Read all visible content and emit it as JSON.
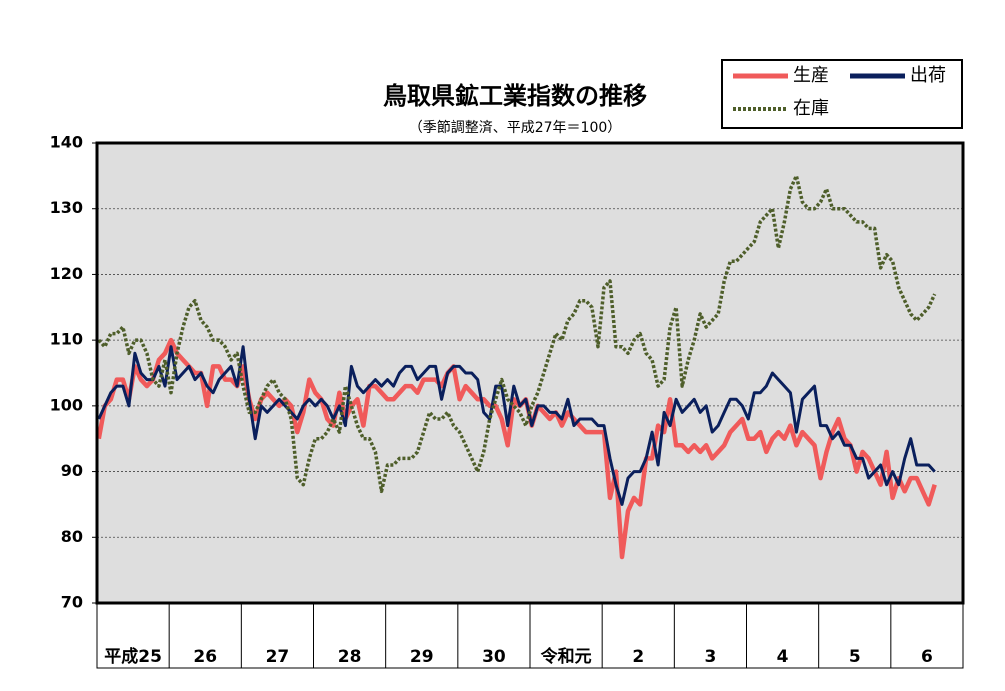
{
  "chart_data": {
    "type": "line",
    "title": "鳥取県鉱工業指数の推移",
    "subtitle": "（季節調整済、平成27年＝100）",
    "categories": [
      "平成25",
      null,
      null,
      null,
      null,
      null,
      null,
      null,
      null,
      null,
      null,
      null,
      "26",
      null,
      null,
      null,
      null,
      null,
      null,
      null,
      null,
      null,
      null,
      null,
      "27",
      null,
      null,
      null,
      null,
      null,
      null,
      null,
      null,
      null,
      null,
      null,
      "28",
      null,
      null,
      null,
      null,
      null,
      null,
      null,
      null,
      null,
      null,
      null,
      "29",
      null,
      null,
      null,
      null,
      null,
      null,
      null,
      null,
      null,
      null,
      null,
      "30",
      null,
      null,
      null,
      null,
      null,
      null,
      null,
      null,
      null,
      null,
      null,
      "令和元",
      null,
      null,
      null,
      null,
      null,
      null,
      null,
      null,
      null,
      null,
      null,
      "2",
      null,
      null,
      null,
      null,
      null,
      null,
      null,
      null,
      null,
      null,
      null,
      "3",
      null,
      null,
      null,
      null,
      null,
      null,
      null,
      null,
      null,
      null,
      null,
      "4",
      null,
      null,
      null,
      null,
      null,
      null,
      null,
      null,
      null,
      null,
      null,
      "5",
      null,
      null,
      null,
      null,
      null,
      null,
      null,
      null,
      null,
      null,
      null,
      "6",
      null,
      null,
      null,
      null,
      null,
      null,
      null,
      null,
      null,
      null,
      null
    ],
    "series": [
      {
        "name": "生産",
        "color": "#f05a5a",
        "dash": "solid",
        "values": [
          95,
          100,
          101,
          104,
          104,
          101,
          106,
          104,
          103,
          104,
          107,
          108,
          110,
          108,
          107,
          106,
          105,
          105,
          100,
          106,
          106,
          104,
          104,
          103,
          106,
          101,
          98,
          101,
          102,
          101,
          100,
          101,
          100,
          96,
          99,
          104,
          102,
          101,
          98,
          97,
          102,
          98,
          100,
          101,
          97,
          103,
          103,
          102,
          101,
          101,
          102,
          103,
          103,
          102,
          104,
          104,
          104,
          103,
          105,
          106,
          101,
          103,
          102,
          101,
          101,
          100,
          100,
          98,
          94,
          101,
          100,
          101,
          97,
          100,
          99,
          98,
          99,
          97,
          99,
          98,
          97,
          96,
          96,
          96,
          96,
          86,
          90,
          77,
          84,
          86,
          85,
          92,
          92,
          97,
          96,
          101,
          94,
          94,
          93,
          94,
          93,
          94,
          92,
          93,
          94,
          96,
          97,
          98,
          95,
          95,
          96,
          93,
          95,
          96,
          95,
          97,
          94,
          96,
          95,
          94,
          89,
          93,
          96,
          98,
          95,
          94,
          90,
          93,
          92,
          90,
          88,
          93,
          86,
          89,
          87,
          89,
          89,
          87,
          85,
          88,
          null,
          null,
          null,
          null
        ]
      },
      {
        "name": "出荷",
        "color": "#0a1f5c",
        "dash": "solid",
        "values": [
          98,
          100,
          102,
          103,
          103,
          100,
          108,
          105,
          104,
          104,
          106,
          103,
          109,
          104,
          105,
          106,
          104,
          105,
          103,
          102,
          104,
          105,
          106,
          103,
          109,
          101,
          95,
          100,
          99,
          100,
          101,
          100,
          99,
          98,
          100,
          101,
          100,
          101,
          100,
          98,
          100,
          97,
          106,
          103,
          102,
          103,
          104,
          103,
          104,
          103,
          105,
          106,
          106,
          104,
          105,
          106,
          106,
          101,
          105,
          106,
          106,
          105,
          105,
          104,
          99,
          98,
          103,
          103,
          97,
          103,
          100,
          101,
          97,
          100,
          100,
          99,
          99,
          98,
          101,
          97,
          98,
          98,
          98,
          97,
          97,
          92,
          88,
          85,
          89,
          90,
          90,
          92,
          96,
          91,
          99,
          97,
          101,
          99,
          100,
          101,
          99,
          100,
          96,
          97,
          99,
          101,
          101,
          100,
          98,
          102,
          102,
          103,
          105,
          104,
          103,
          102,
          96,
          101,
          102,
          103,
          97,
          97,
          95,
          96,
          94,
          94,
          92,
          92,
          89,
          90,
          91,
          88,
          90,
          88,
          92,
          95,
          91,
          91,
          91,
          90,
          null,
          null,
          null,
          null
        ]
      },
      {
        "name": "在庫",
        "color": "#4e5e2a",
        "dash": "dotted",
        "values": [
          110,
          109,
          111,
          111,
          112,
          108,
          110,
          110,
          108,
          104,
          103,
          107,
          102,
          108,
          112,
          115,
          116,
          113,
          112,
          110,
          110,
          109,
          107,
          108,
          103,
          99,
          99,
          101,
          103,
          104,
          102,
          101,
          98,
          89,
          88,
          92,
          95,
          95,
          96,
          98,
          96,
          103,
          100,
          97,
          95,
          95,
          93,
          87,
          91,
          91,
          92,
          92,
          92,
          93,
          96,
          99,
          98,
          98,
          99,
          97,
          96,
          94,
          92,
          90,
          93,
          98,
          101,
          104,
          101,
          100,
          99,
          97,
          100,
          102,
          105,
          108,
          111,
          110,
          113,
          114,
          116,
          116,
          115,
          109,
          118,
          119,
          109,
          109,
          108,
          110,
          111,
          108,
          107,
          103,
          104,
          112,
          115,
          103,
          107,
          110,
          114,
          112,
          113,
          114,
          119,
          122,
          122,
          123,
          124,
          125,
          128,
          129,
          130,
          124,
          128,
          133,
          135,
          131,
          130,
          130,
          131,
          133,
          130,
          130,
          130,
          129,
          128,
          128,
          127,
          127,
          121,
          123,
          122,
          118,
          116,
          114,
          113,
          114,
          115,
          117,
          null,
          null,
          null,
          null
        ]
      }
    ],
    "ylim": [
      70,
      140
    ],
    "yticks": [
      70,
      80,
      90,
      100,
      110,
      120,
      130,
      140
    ],
    "grid": true,
    "legend": "upper right"
  }
}
